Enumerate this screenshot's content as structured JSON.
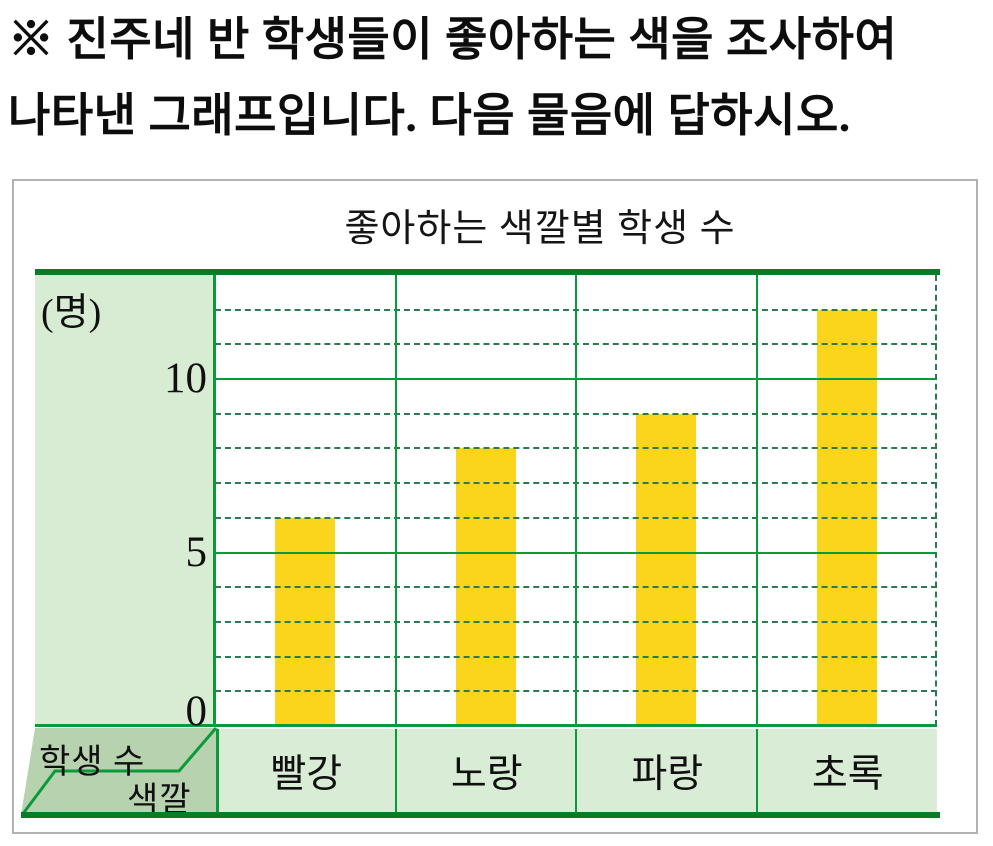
{
  "page": {
    "instruction_line1": "※ 진주네 반 학생들이 좋아하는 색을 조사하여",
    "instruction_line2": "나타낸 그래프입니다. 다음 물음에 답하시오."
  },
  "chart": {
    "title": "좋아하는 색깔별 학생 수",
    "y_unit_label": "(명)",
    "corner_row_header": "학생 수",
    "corner_col_header": "색깔"
  },
  "chart_data": {
    "type": "bar",
    "title": "좋아하는 색깔별 학생 수",
    "categories": [
      "빨강",
      "노랑",
      "파랑",
      "초록"
    ],
    "values": [
      6,
      8,
      9,
      12
    ],
    "xlabel": "색깔",
    "ylabel": "학생 수",
    "y_unit": "(명)",
    "ylim": [
      0,
      13
    ],
    "y_major_ticks": [
      10,
      5,
      0
    ],
    "y_minor_step": 1,
    "grid": "solid green major lines every 5 units, dashed green minor lines every 1 unit, dashed right edge",
    "legend": "none",
    "bar_color": "#fbd41c"
  },
  "colors": {
    "bar": "#fbd41c",
    "line_major": "#0a9a3a",
    "line_border": "#077d28",
    "line_dashed": "#2c7a52",
    "panel_bg": "#d8ebd3",
    "corner_bg": "#b7d2ae",
    "category_bg": "#d9edd6",
    "card_border": "#b2b2b2",
    "text": "#111111"
  }
}
